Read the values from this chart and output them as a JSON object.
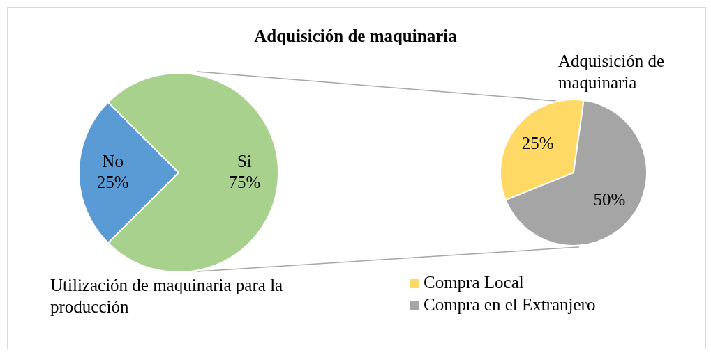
{
  "chart_data": [
    {
      "type": "pie",
      "title": "Adquisición de maquinaria",
      "categories": [
        "No",
        "Si"
      ],
      "values": [
        25,
        75
      ],
      "colors": [
        "#5b9bd5",
        "#a9d18e"
      ],
      "value_labels": [
        "25%",
        "75%"
      ],
      "annotations": [
        "Utilización de maquinaria para la producción"
      ],
      "legend": false
    },
    {
      "type": "pie",
      "categories": [
        "Compra Local",
        "Compra en el Extranjero"
      ],
      "values": [
        25,
        50
      ],
      "colors": [
        "#ffd966",
        "#a5a5a5"
      ],
      "value_labels": [
        "25%",
        "50%"
      ],
      "annotations": [
        "Adquisición de maquinaria"
      ],
      "legend": "bottom"
    }
  ]
}
